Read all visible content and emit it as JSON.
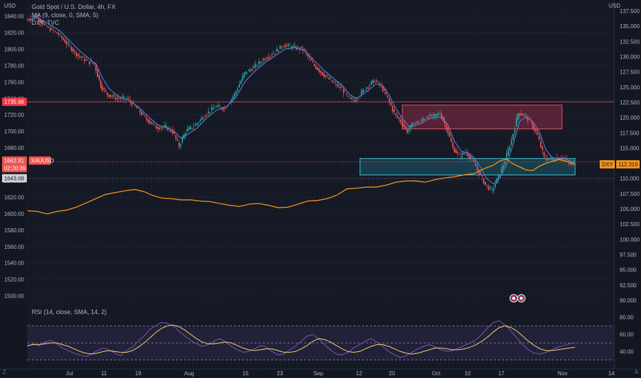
{
  "legend": {
    "title": "Gold Spot / U.S. Dollar, 4h, FX",
    "ma": "MA (9, close, 0, SMA, 5)",
    "dxy": "DXY, TVC",
    "rsi": "RSI (14, close, SMA, 14, 2)"
  },
  "axis_unit": "USD",
  "corner_left": "Z",
  "corner_right": "A",
  "colors": {
    "background": "#131722",
    "price_up": "#26a69a",
    "price_down": "#ef5350",
    "ma": "#5b7cd6",
    "dxy": "#f7931a",
    "rsi": "#7e57c2",
    "rsi_ma": "#f5d76e",
    "resistance_line": "#f23645",
    "supply_zone": "#8b2a46",
    "demand_zone": "#1d6a7a"
  },
  "chart_data": {
    "type": "line",
    "left_axis": {
      "label": "USD",
      "ticks": [
        1840,
        1820,
        1800,
        1780,
        1760,
        1740,
        1720,
        1700,
        1680,
        1660,
        1640,
        1620,
        1600,
        1580,
        1560,
        1540,
        1520,
        1500
      ],
      "tick_labels": [
        "1840.00",
        "1820.00",
        "1800.00",
        "1780.00",
        "1760.00",
        "1740.00",
        "1720.00",
        "1700.00",
        "1680.00",
        "1660.00",
        "1640.00",
        "1620.00",
        "1600.00",
        "1580.00",
        "1560.00",
        "1540.00",
        "1520.00",
        "1500.00"
      ],
      "ylim": [
        1488,
        1853
      ]
    },
    "right_axis": {
      "label": "USD",
      "ticks": [
        137.5,
        135,
        132.5,
        130,
        127.5,
        125,
        122.5,
        120,
        117.5,
        115,
        112.5,
        110,
        107.5,
        105,
        102.5,
        100,
        97.5,
        95,
        92.5,
        90
      ],
      "tick_labels": [
        "137.500",
        "135.000",
        "132.500",
        "130.000",
        "127.500",
        "125.000",
        "122.500",
        "120.000",
        "117.500",
        "115.000",
        "112.500",
        "110.000",
        "107.500",
        "105.000",
        "102.500",
        "100.000",
        "97.500",
        "95.000",
        "92.500",
        "90.000"
      ],
      "ylim": [
        89.1,
        138.4
      ]
    },
    "x_axis": {
      "ticks": [
        {
          "label": "Jul",
          "i": 0
        },
        {
          "label": "11",
          "i": 1
        },
        {
          "label": "19",
          "i": 2
        },
        {
          "label": "Aug",
          "i": 3
        },
        {
          "label": "15",
          "i": 4
        },
        {
          "label": "23",
          "i": 5
        },
        {
          "label": "Sep",
          "i": 6
        },
        {
          "label": "12",
          "i": 7
        },
        {
          "label": "20",
          "i": 8
        },
        {
          "label": "Oct",
          "i": 9
        },
        {
          "label": "10",
          "i": 10
        },
        {
          "label": "17",
          "i": 11
        },
        {
          "label": "Nov",
          "i": 12
        },
        {
          "label": "14",
          "i": 13
        }
      ]
    },
    "gold": {
      "name": "XAUUSD",
      "points": [
        [
          0,
          1835
        ],
        [
          3,
          1840
        ],
        [
          6,
          1828
        ],
        [
          10,
          1818
        ],
        [
          13,
          1805
        ],
        [
          16,
          1792
        ],
        [
          19,
          1785
        ],
        [
          21,
          1782
        ],
        [
          23,
          1755
        ],
        [
          25,
          1745
        ],
        [
          28,
          1740
        ],
        [
          31,
          1740
        ],
        [
          34,
          1728
        ],
        [
          37,
          1715
        ],
        [
          40,
          1705
        ],
        [
          43,
          1705
        ],
        [
          45,
          1700
        ],
        [
          47,
          1682
        ],
        [
          49,
          1700
        ],
        [
          52,
          1708
        ],
        [
          55,
          1720
        ],
        [
          58,
          1730
        ],
        [
          61,
          1728
        ],
        [
          64,
          1745
        ],
        [
          67,
          1770
        ],
        [
          70,
          1778
        ],
        [
          73,
          1788
        ],
        [
          76,
          1795
        ],
        [
          79,
          1805
        ],
        [
          82,
          1802
        ],
        [
          85,
          1800
        ],
        [
          88,
          1782
        ],
        [
          91,
          1770
        ],
        [
          94,
          1760
        ],
        [
          97,
          1752
        ],
        [
          99,
          1740
        ],
        [
          101,
          1738
        ],
        [
          104,
          1752
        ],
        [
          107,
          1762
        ],
        [
          109,
          1755
        ],
        [
          111,
          1740
        ],
        [
          113,
          1722
        ],
        [
          115,
          1712
        ],
        [
          117,
          1700
        ],
        [
          119,
          1710
        ],
        [
          121,
          1712
        ],
        [
          123,
          1718
        ],
        [
          125,
          1718
        ],
        [
          127,
          1722
        ],
        [
          129,
          1705
        ],
        [
          131,
          1680
        ],
        [
          133,
          1670
        ],
        [
          135,
          1675
        ],
        [
          137,
          1665
        ],
        [
          139,
          1650
        ],
        [
          141,
          1635
        ],
        [
          143,
          1628
        ],
        [
          145,
          1645
        ],
        [
          147,
          1665
        ],
        [
          149,
          1690
        ],
        [
          151,
          1722
        ],
        [
          153,
          1720
        ],
        [
          155,
          1710
        ],
        [
          157,
          1695
        ],
        [
          159,
          1668
        ],
        [
          161,
          1665
        ],
        [
          163,
          1668
        ],
        [
          165,
          1668
        ],
        [
          167,
          1660
        ],
        [
          168,
          1662.91
        ]
      ],
      "last_price": 1662.91,
      "countdown": "02:20:39",
      "low_marker": 1643.08
    },
    "ma": {
      "name": "MA (9, close, 0, SMA, 5)",
      "points": [
        [
          0,
          1835
        ],
        [
          3,
          1838
        ],
        [
          6,
          1832
        ],
        [
          10,
          1822
        ],
        [
          13,
          1810
        ],
        [
          16,
          1798
        ],
        [
          19,
          1788
        ],
        [
          21,
          1782
        ],
        [
          23,
          1765
        ],
        [
          25,
          1752
        ],
        [
          28,
          1742
        ],
        [
          31,
          1738
        ],
        [
          34,
          1730
        ],
        [
          37,
          1718
        ],
        [
          40,
          1708
        ],
        [
          43,
          1704
        ],
        [
          45,
          1700
        ],
        [
          47,
          1692
        ],
        [
          49,
          1696
        ],
        [
          52,
          1704
        ],
        [
          55,
          1716
        ],
        [
          58,
          1726
        ],
        [
          61,
          1730
        ],
        [
          64,
          1742
        ],
        [
          67,
          1762
        ],
        [
          70,
          1774
        ],
        [
          73,
          1784
        ],
        [
          76,
          1792
        ],
        [
          79,
          1800
        ],
        [
          82,
          1802
        ],
        [
          85,
          1798
        ],
        [
          88,
          1786
        ],
        [
          91,
          1774
        ],
        [
          94,
          1764
        ],
        [
          97,
          1754
        ],
        [
          99,
          1744
        ],
        [
          101,
          1740
        ],
        [
          104,
          1748
        ],
        [
          107,
          1758
        ],
        [
          109,
          1755
        ],
        [
          111,
          1744
        ],
        [
          113,
          1728
        ],
        [
          115,
          1716
        ],
        [
          117,
          1706
        ],
        [
          119,
          1708
        ],
        [
          121,
          1710
        ],
        [
          123,
          1715
        ],
        [
          125,
          1717
        ],
        [
          127,
          1718
        ],
        [
          129,
          1708
        ],
        [
          131,
          1688
        ],
        [
          133,
          1676
        ],
        [
          135,
          1674
        ],
        [
          137,
          1668
        ],
        [
          139,
          1656
        ],
        [
          141,
          1642
        ],
        [
          143,
          1636
        ],
        [
          145,
          1644
        ],
        [
          147,
          1660
        ],
        [
          149,
          1684
        ],
        [
          151,
          1712
        ],
        [
          153,
          1718
        ],
        [
          155,
          1712
        ],
        [
          157,
          1700
        ],
        [
          159,
          1678
        ],
        [
          161,
          1668
        ],
        [
          163,
          1666
        ],
        [
          165,
          1667
        ],
        [
          167,
          1663
        ],
        [
          168,
          1662
        ]
      ]
    },
    "dxy": {
      "name": "DXY",
      "last_price": 112.319,
      "points": [
        [
          0,
          104.7
        ],
        [
          3,
          104.6
        ],
        [
          6,
          104.2
        ],
        [
          9,
          104.6
        ],
        [
          12,
          104.8
        ],
        [
          15,
          105.3
        ],
        [
          18,
          106.0
        ],
        [
          21,
          106.7
        ],
        [
          24,
          107.4
        ],
        [
          27,
          107.7
        ],
        [
          30,
          108.0
        ],
        [
          33,
          108.2
        ],
        [
          36,
          107.8
        ],
        [
          38,
          107.3
        ],
        [
          41,
          106.8
        ],
        [
          44,
          106.7
        ],
        [
          47,
          106.5
        ],
        [
          50,
          106.5
        ],
        [
          53,
          106.3
        ],
        [
          56,
          106.2
        ],
        [
          59,
          105.9
        ],
        [
          62,
          105.6
        ],
        [
          65,
          105.4
        ],
        [
          68,
          105.8
        ],
        [
          71,
          105.9
        ],
        [
          74,
          105.6
        ],
        [
          77,
          105.2
        ],
        [
          80,
          105.3
        ],
        [
          83,
          105.8
        ],
        [
          86,
          106.3
        ],
        [
          89,
          106.4
        ],
        [
          92,
          106.7
        ],
        [
          95,
          107.3
        ],
        [
          98,
          108.3
        ],
        [
          101,
          108.4
        ],
        [
          104,
          108.6
        ],
        [
          107,
          108.6
        ],
        [
          110,
          108.9
        ],
        [
          113,
          109.4
        ],
        [
          116,
          109.6
        ],
        [
          119,
          109.6
        ],
        [
          122,
          109.4
        ],
        [
          125,
          109.8
        ],
        [
          128,
          110.1
        ],
        [
          131,
          110.3
        ],
        [
          134,
          110.6
        ],
        [
          137,
          110.8
        ],
        [
          140,
          111.6
        ],
        [
          143,
          112.2
        ],
        [
          145,
          112.9
        ],
        [
          147,
          113.2
        ],
        [
          149,
          112.4
        ],
        [
          151,
          111.9
        ],
        [
          153,
          111.4
        ],
        [
          155,
          111.3
        ],
        [
          157,
          112.0
        ],
        [
          159,
          112.5
        ],
        [
          161,
          112.8
        ],
        [
          163,
          113.1
        ],
        [
          165,
          112.9
        ],
        [
          167,
          112.5
        ],
        [
          168,
          112.3
        ]
      ]
    },
    "resistance_level": {
      "label": "1735.98",
      "value": 1735.98
    },
    "zones": [
      {
        "name": "supply-zone",
        "x0": 115,
        "x1": 164,
        "y0": 1703,
        "y1": 1732
      },
      {
        "name": "demand-zone",
        "x0": 102,
        "x1": 168,
        "y0": 1647,
        "y1": 1667
      }
    ],
    "rsi": {
      "name": "RSI (14, close, SMA, 14, 2)",
      "ticks": [
        80,
        60,
        40
      ],
      "tick_labels": [
        "80.00",
        "60.00",
        "40.00"
      ],
      "ylim": [
        25,
        87
      ],
      "bands": [
        70,
        50,
        30
      ],
      "values": [
        46,
        49,
        47,
        51,
        53,
        49,
        44,
        41,
        38,
        36,
        34,
        37,
        41,
        44,
        42,
        38,
        35,
        41,
        45,
        52,
        58,
        66,
        70,
        74,
        73,
        70,
        64,
        58,
        53,
        49,
        46,
        48,
        52,
        55,
        51,
        46,
        42,
        39,
        40,
        43,
        47,
        45,
        40,
        36,
        37,
        42,
        46,
        52,
        58,
        60,
        55,
        48,
        42,
        37,
        36,
        39,
        44,
        48,
        52,
        55,
        51,
        46,
        40,
        36,
        33,
        35,
        39,
        43,
        46,
        48,
        45,
        42,
        40,
        41,
        44,
        47,
        50,
        54,
        60,
        68,
        74,
        76,
        71,
        64,
        56,
        48,
        42,
        38,
        37,
        39,
        42,
        45,
        47,
        49,
        50
      ],
      "ma_values": [
        47,
        48,
        48,
        49,
        50,
        50,
        48,
        46,
        43,
        40,
        38,
        37,
        38,
        40,
        41,
        40,
        39,
        39,
        41,
        45,
        50,
        56,
        62,
        67,
        70,
        71,
        69,
        65,
        60,
        55,
        51,
        49,
        49,
        50,
        51,
        50,
        47,
        44,
        42,
        41,
        42,
        43,
        43,
        41,
        39,
        39,
        40,
        43,
        47,
        52,
        55,
        54,
        51,
        47,
        43,
        40,
        39,
        40,
        43,
        46,
        48,
        48,
        46,
        43,
        40,
        38,
        37,
        38,
        40,
        42,
        44,
        44,
        43,
        42,
        42,
        43,
        45,
        48,
        52,
        57,
        63,
        68,
        70,
        68,
        64,
        58,
        52,
        47,
        43,
        41,
        41,
        42,
        43,
        44,
        45
      ]
    }
  }
}
